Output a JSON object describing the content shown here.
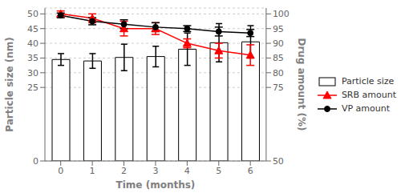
{
  "chart_data": {
    "type": "bar",
    "x": [
      0,
      1,
      2,
      3,
      4,
      5,
      6
    ],
    "xlim": [
      -0.5,
      6.5
    ],
    "xticks": [
      0,
      1,
      2,
      3,
      4,
      5,
      6
    ],
    "xlabel": "Time (months)",
    "ylabel": "Particle size (nm)",
    "y2label": "Drug amount (%)",
    "ylim": [
      0,
      52
    ],
    "yticks": [
      0,
      25,
      30,
      35,
      40,
      45,
      50
    ],
    "y2lim": [
      50,
      102
    ],
    "y2ticks": [
      50,
      75,
      80,
      85,
      90,
      95,
      100
    ],
    "grid": true,
    "legend": "right",
    "series": [
      {
        "name": "Particle size",
        "type": "bar",
        "color": "white",
        "values": [
          34.5,
          34.0,
          35.2,
          35.5,
          38.0,
          40.2,
          40.5
        ],
        "errors": [
          2.0,
          2.5,
          4.5,
          3.5,
          5.5,
          6.5,
          5.5
        ]
      },
      {
        "name": "SRB amount",
        "type": "line",
        "axis": "y2",
        "color": "red",
        "marker": "triangle",
        "line_style": "solid",
        "values": [
          100.0,
          98.5,
          95.0,
          95.0,
          90.0,
          87.5,
          86.0
        ],
        "errors": [
          1.0,
          1.5,
          2.5,
          2.0,
          1.5,
          2.5,
          3.5
        ]
      },
      {
        "name": "VP amount",
        "type": "line",
        "axis": "y2",
        "color": "black",
        "marker": "circle",
        "line_style": "solid",
        "values": [
          99.5,
          97.5,
          96.5,
          95.5,
          95.0,
          94.0,
          93.5
        ],
        "errors": [
          0.8,
          1.2,
          1.5,
          1.5,
          1.0,
          1.5,
          1.2
        ]
      }
    ]
  }
}
